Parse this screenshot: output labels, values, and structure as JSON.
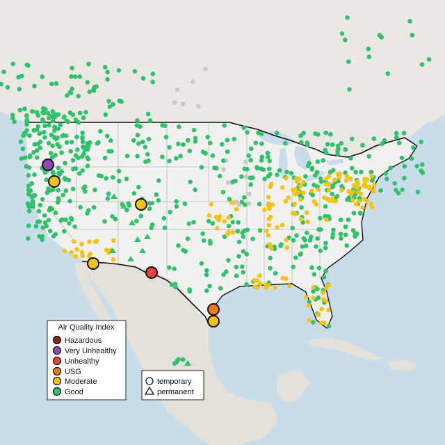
{
  "legend": {
    "title": "Air Quality Index",
    "categories": [
      {
        "label": "Hazardous",
        "color": "#7e2a1c"
      },
      {
        "label": "Very Unhealthy",
        "color": "#8e4ab4"
      },
      {
        "label": "Unhealthy",
        "color": "#e8433a"
      },
      {
        "label": "USG",
        "color": "#ee7a1e"
      },
      {
        "label": "Moderate",
        "color": "#f2c312"
      },
      {
        "label": "Good",
        "color": "#2fc16c"
      }
    ]
  },
  "shape_legend": {
    "temporary": "temporary",
    "permanent": "permanent"
  },
  "colors": {
    "ocean": "#c9dcea",
    "land": "#ebe8e4",
    "us_land": "#f2f1ef",
    "mexico": "#e4e1da",
    "offline_station": "#c8c8c8"
  }
}
